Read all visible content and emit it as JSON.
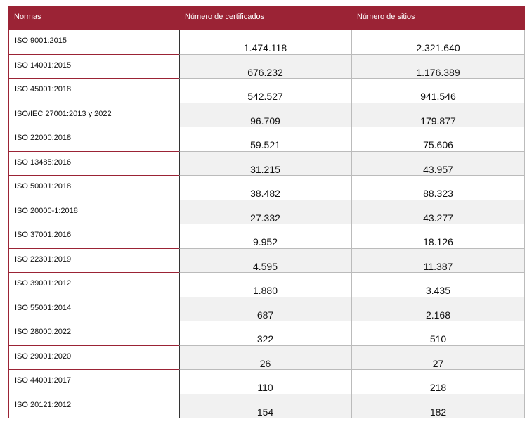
{
  "table": {
    "header": [
      "Normas",
      "Número de certificados",
      "Número de sitios"
    ],
    "rows": [
      [
        "ISO 9001:2015",
        "1.474.118",
        "2.321.640"
      ],
      [
        "ISO 14001:2015",
        "676.232",
        "1.176.389"
      ],
      [
        "ISO 45001:2018",
        "542.527",
        "941.546"
      ],
      [
        "ISO/IEC 27001:2013 y 2022",
        "96.709",
        "179.877"
      ],
      [
        "ISO 22000:2018",
        "59.521",
        "75.606"
      ],
      [
        "ISO 13485:2016",
        "31.215",
        "43.957"
      ],
      [
        "ISO 50001:2018",
        "38.482",
        "88.323"
      ],
      [
        "ISO 20000-1:2018",
        "27.332",
        "43.277"
      ],
      [
        "ISO 37001:2016",
        "9.952",
        "18.126"
      ],
      [
        "ISO 22301:2019",
        "4.595",
        "11.387"
      ],
      [
        "ISO 39001:2012",
        "1.880",
        "3.435"
      ],
      [
        "ISO 55001:2014",
        "687",
        "2.168"
      ],
      [
        "ISO 28000:2022",
        "322",
        "510"
      ],
      [
        "ISO 29001:2020",
        "26",
        "27"
      ],
      [
        "ISO 44001:2017",
        "110",
        "218"
      ],
      [
        "ISO 20121:2012",
        "154",
        "182"
      ]
    ]
  }
}
